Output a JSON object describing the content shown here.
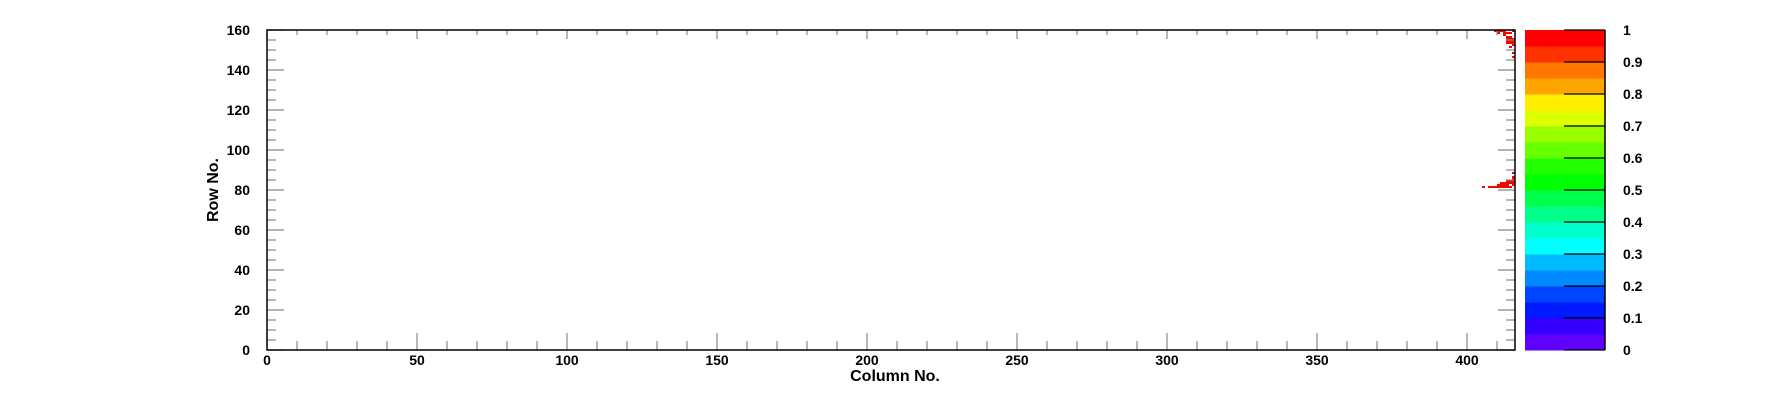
{
  "chart_data": {
    "type": "heatmap",
    "title": "",
    "xlabel": "Column No.",
    "ylabel": "Row No.",
    "xlim": [
      0,
      416
    ],
    "ylim": [
      0,
      160
    ],
    "zlim": [
      0,
      1
    ],
    "x_ticks": [
      "0",
      "50",
      "100",
      "150",
      "200",
      "250",
      "300",
      "350",
      "400"
    ],
    "y_ticks": [
      "0",
      "20",
      "40",
      "60",
      "80",
      "100",
      "120",
      "140",
      "160"
    ],
    "z_ticks": [
      "0",
      "0.1",
      "0.2",
      "0.3",
      "0.4",
      "0.5",
      "0.6",
      "0.7",
      "0.8",
      "0.9",
      "1"
    ],
    "palette": [
      "#6000ff",
      "#3300ff",
      "#0019ff",
      "#0045ff",
      "#0088ff",
      "#00bbff",
      "#00ffff",
      "#00ffcc",
      "#00ff88",
      "#00ff4d",
      "#00ff00",
      "#22ff00",
      "#66ff00",
      "#99ff00",
      "#ddff00",
      "#ffee00",
      "#ffa500",
      "#ff7700",
      "#ff3300",
      "#ff0000"
    ],
    "grid": false,
    "cells": [
      {
        "col": 409,
        "row": 159,
        "value": 1
      },
      {
        "col": 410,
        "row": 159,
        "value": 1
      },
      {
        "col": 411,
        "row": 159,
        "value": 1
      },
      {
        "col": 412,
        "row": 159,
        "value": 1
      },
      {
        "col": 415,
        "row": 159,
        "value": 1
      },
      {
        "col": 410,
        "row": 158,
        "value": 1
      },
      {
        "col": 412,
        "row": 158,
        "value": 1
      },
      {
        "col": 413,
        "row": 158,
        "value": 1
      },
      {
        "col": 414,
        "row": 158,
        "value": 1
      },
      {
        "col": 412,
        "row": 157,
        "value": 1
      },
      {
        "col": 413,
        "row": 156,
        "value": 1
      },
      {
        "col": 414,
        "row": 156,
        "value": 1
      },
      {
        "col": 413,
        "row": 155,
        "value": 1
      },
      {
        "col": 414,
        "row": 155,
        "value": 1
      },
      {
        "col": 415,
        "row": 155,
        "value": 1
      },
      {
        "col": 413,
        "row": 154,
        "value": 1
      },
      {
        "col": 414,
        "row": 154,
        "value": 1
      },
      {
        "col": 415,
        "row": 154,
        "value": 1
      },
      {
        "col": 413,
        "row": 153,
        "value": 1
      },
      {
        "col": 414,
        "row": 153,
        "value": 1
      },
      {
        "col": 415,
        "row": 153,
        "value": 1
      },
      {
        "col": 415,
        "row": 152,
        "value": 1
      },
      {
        "col": 414,
        "row": 151,
        "value": 1
      },
      {
        "col": 415,
        "row": 148,
        "value": 1
      },
      {
        "col": 415,
        "row": 146,
        "value": 1
      },
      {
        "col": 415,
        "row": 88,
        "value": 1
      },
      {
        "col": 415,
        "row": 86,
        "value": 1
      },
      {
        "col": 415,
        "row": 85,
        "value": 1
      },
      {
        "col": 413,
        "row": 84,
        "value": 1
      },
      {
        "col": 414,
        "row": 84,
        "value": 1
      },
      {
        "col": 415,
        "row": 84,
        "value": 1
      },
      {
        "col": 411,
        "row": 83,
        "value": 1
      },
      {
        "col": 412,
        "row": 83,
        "value": 1
      },
      {
        "col": 413,
        "row": 83,
        "value": 1
      },
      {
        "col": 414,
        "row": 83,
        "value": 1
      },
      {
        "col": 415,
        "row": 83,
        "value": 1
      },
      {
        "col": 410,
        "row": 82,
        "value": 1
      },
      {
        "col": 411,
        "row": 82,
        "value": 1
      },
      {
        "col": 412,
        "row": 82,
        "value": 1
      },
      {
        "col": 413,
        "row": 82,
        "value": 1
      },
      {
        "col": 415,
        "row": 82,
        "value": 1
      },
      {
        "col": 405,
        "row": 81,
        "value": 1
      },
      {
        "col": 407,
        "row": 81,
        "value": 1
      },
      {
        "col": 408,
        "row": 81,
        "value": 1
      },
      {
        "col": 409,
        "row": 81,
        "value": 1
      },
      {
        "col": 410,
        "row": 81,
        "value": 1
      },
      {
        "col": 411,
        "row": 81,
        "value": 1
      },
      {
        "col": 412,
        "row": 81,
        "value": 1
      },
      {
        "col": 413,
        "row": 81,
        "value": 1
      },
      {
        "col": 414,
        "row": 81,
        "value": 1
      }
    ]
  }
}
